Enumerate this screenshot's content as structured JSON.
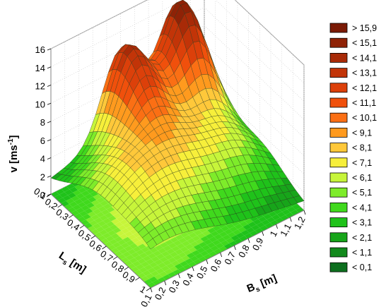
{
  "chart_data": {
    "type": "surface3d",
    "title": "",
    "zlabel": "v [ms",
    "zlabel_sup": "-1",
    "zlabel_end": "]",
    "xlabel_main": "L",
    "xlabel_sub": "s",
    "xlabel_unit": " [m]",
    "ylabel_main": "B",
    "ylabel_sub": "s",
    "ylabel_unit": " [m]",
    "z_ticks": [
      "0",
      "2",
      "4",
      "6",
      "8",
      "10",
      "12",
      "14",
      "16"
    ],
    "zlim": [
      0,
      16
    ],
    "x_ticks": [
      "0,1",
      "0,2",
      "0,3",
      "0,4",
      "0,5",
      "0,6",
      "0,7",
      "0,8",
      "0,9",
      "1"
    ],
    "xlim": [
      0.1,
      1.0
    ],
    "y_ticks": [
      "0,1",
      "0,2",
      "0,3",
      "0,4",
      "0,5",
      "0,6",
      "0,7",
      "0,8",
      "0,9",
      "1",
      "1,1",
      "1,2"
    ],
    "ylim": [
      0.1,
      1.2
    ],
    "peaks": [
      {
        "Ls": 0.15,
        "Bs": 1.0,
        "v": 13.3,
        "sigma_ls": 0.16,
        "sigma_bs": 0.14
      },
      {
        "Ls": 0.15,
        "Bs": 0.6,
        "v": 10.0,
        "sigma_ls": 0.18,
        "sigma_bs": 0.13
      },
      {
        "Ls": 0.6,
        "Bs": 1.0,
        "v": 3.0,
        "sigma_ls": 0.2,
        "sigma_bs": 0.2
      },
      {
        "Ls": 0.55,
        "Bs": 0.45,
        "v": 7.0,
        "sigma_ls": 0.28,
        "sigma_bs": 0.35
      },
      {
        "Ls": 1.0,
        "Bs": 0.1,
        "v": 2.5,
        "sigma_ls": 0.2,
        "sigma_bs": 0.3
      }
    ],
    "legend_position": "right",
    "legend": [
      {
        "label": "> 15,9",
        "color": "#7a1a05"
      },
      {
        "label": "< 15,1",
        "color": "#8f2206"
      },
      {
        "label": "< 14,1",
        "color": "#a82a07"
      },
      {
        "label": "< 13,1",
        "color": "#c23408"
      },
      {
        "label": "< 12,1",
        "color": "#dc400a"
      },
      {
        "label": "< 11,1",
        "color": "#f0500c"
      },
      {
        "label": "< 10,1",
        "color": "#fb6f14"
      },
      {
        "label": "< 9,1",
        "color": "#ff9a1e"
      },
      {
        "label": "< 8,1",
        "color": "#ffc83a"
      },
      {
        "label": "< 7,1",
        "color": "#f7ef3a"
      },
      {
        "label": "< 6,1",
        "color": "#c7f53a"
      },
      {
        "label": "< 5,1",
        "color": "#7eec2a"
      },
      {
        "label": "< 4,1",
        "color": "#40d91d"
      },
      {
        "label": "< 3,1",
        "color": "#1fc21a"
      },
      {
        "label": "< 2,1",
        "color": "#17a51a"
      },
      {
        "label": "< 1,1",
        "color": "#12891c"
      },
      {
        "label": "< 0,1",
        "color": "#0d6f1e"
      }
    ]
  }
}
